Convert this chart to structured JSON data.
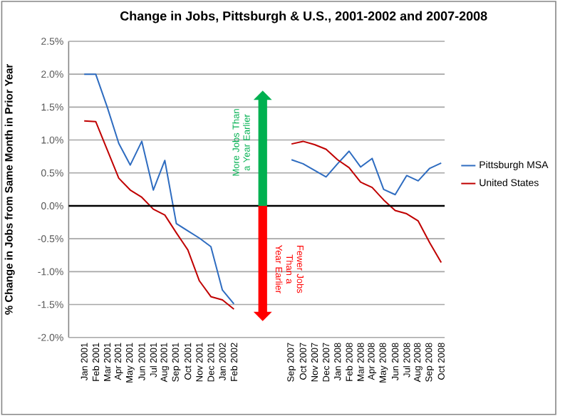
{
  "chart_data": {
    "type": "line",
    "title": "Change in Jobs, Pittsburgh & U.S., 2001-2002 and 2007-2008",
    "ylabel": "% Change in Jobs from Same Month in Prior Year",
    "categories": [
      "Jan 2001",
      "Feb 2001",
      "Mar 2001",
      "Apr 2001",
      "May 2001",
      "Jun 2001",
      "Jul 2001",
      "Aug 2001",
      "Sep 2001",
      "Oct 2001",
      "Nov 2001",
      "Dec 2001",
      "Jan 2002",
      "Feb 2002",
      null,
      null,
      null,
      null,
      "Sep 2007",
      "Oct 2007",
      "Nov 2007",
      "Dec 2007",
      "Jan 2008",
      "Feb 2008",
      "Mar 2008",
      "Apr 2008",
      "May 2008",
      "Jun 2008",
      "Jul 2008",
      "Aug 2008",
      "Sep 2008",
      "Oct 2008"
    ],
    "series": [
      {
        "name": "Pittsburgh MSA",
        "color": "#2e6cc0",
        "values": [
          2.0,
          2.0,
          1.5,
          0.95,
          0.62,
          0.98,
          0.24,
          0.69,
          -0.27,
          -0.38,
          -0.49,
          -0.62,
          -1.28,
          -1.49,
          null,
          null,
          null,
          null,
          0.7,
          0.64,
          0.54,
          0.44,
          0.64,
          0.83,
          0.59,
          0.72,
          0.25,
          0.17,
          0.46,
          0.38,
          0.57,
          0.65
        ]
      },
      {
        "name": "United States",
        "color": "#c00000",
        "values": [
          1.29,
          1.28,
          0.85,
          0.42,
          0.24,
          0.13,
          -0.05,
          -0.14,
          -0.41,
          -0.67,
          -1.14,
          -1.38,
          -1.43,
          -1.57,
          null,
          null,
          null,
          null,
          0.94,
          0.98,
          0.93,
          0.86,
          0.7,
          0.58,
          0.36,
          0.28,
          0.09,
          -0.07,
          -0.12,
          -0.23,
          -0.56,
          -0.86
        ]
      }
    ],
    "ylim": [
      -2.0,
      2.5
    ],
    "yticks": [
      {
        "value": -2.0,
        "label": "-2.0%"
      },
      {
        "value": -1.5,
        "label": "-1.5%"
      },
      {
        "value": -1.0,
        "label": "-1.0%"
      },
      {
        "value": -0.5,
        "label": "-0.5%"
      },
      {
        "value": 0.0,
        "label": "0.0%"
      },
      {
        "value": 0.5,
        "label": "0.5%"
      },
      {
        "value": 1.0,
        "label": "1.0%"
      },
      {
        "value": 1.5,
        "label": "1.5%"
      },
      {
        "value": 2.0,
        "label": "2.0%"
      },
      {
        "value": 2.5,
        "label": "2.5%"
      }
    ],
    "grid": "y",
    "legend": "right",
    "ref_lines": [
      {
        "axis": "y",
        "value": 0,
        "color": "#000000"
      }
    ],
    "annotations": [
      "More Jobs Than a Year Earlier",
      "Fewer Jobs Than a Year Earlier"
    ]
  }
}
